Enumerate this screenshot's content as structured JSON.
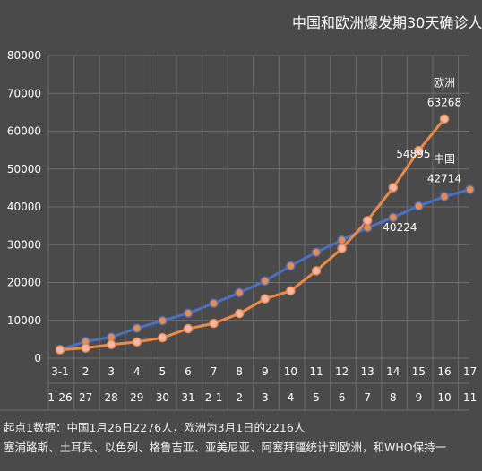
{
  "chart_data": {
    "type": "line",
    "title": "中国和欧洲爆发期30天确诊人",
    "categories_row1": [
      "3-1",
      "2",
      "3",
      "4",
      "5",
      "6",
      "7",
      "8",
      "9",
      "10",
      "11",
      "12",
      "13",
      "14",
      "15",
      "16",
      "17"
    ],
    "categories_row2": [
      "1-26",
      "27",
      "28",
      "29",
      "30",
      "31",
      "2-1",
      "2",
      "3",
      "4",
      "5",
      "6",
      "7",
      "8",
      "9",
      "10",
      "11"
    ],
    "ylim": [
      0,
      80000
    ],
    "yticks": [
      "0",
      "10000",
      "20000",
      "30000",
      "40000",
      "50000",
      "60000",
      "70000",
      "80000"
    ],
    "grid": true,
    "series": [
      {
        "name": "中国",
        "color": "#4a72c4",
        "marker_color": "#ed8a45",
        "values": [
          2276,
          4400,
          5550,
          7900,
          9900,
          11900,
          14500,
          17300,
          20400,
          24400,
          28000,
          31200,
          34500,
          37200,
          40224,
          42714,
          44600
        ]
      },
      {
        "name": "欧洲",
        "color": "#ed8a45",
        "marker_color": "#f2b7b0",
        "values": [
          2216,
          2700,
          3600,
          4300,
          5400,
          7800,
          9200,
          11800,
          15700,
          17800,
          23100,
          29000,
          36400,
          45100,
          54895,
          63268
        ]
      }
    ],
    "annotations": [
      {
        "text": "欧洲",
        "series": "欧洲"
      },
      {
        "text": "63268",
        "series": "欧洲"
      },
      {
        "text": "54895",
        "series": "欧洲"
      },
      {
        "text": "中国",
        "series": "中国"
      },
      {
        "text": "42714",
        "series": "中国"
      },
      {
        "text": "40224",
        "series": "中国"
      }
    ]
  },
  "footnotes": {
    "line1": "起点1数据：中国1月26日2276人，欧洲为3月1日的2216人",
    "line2": "塞浦路斯、土耳其、以色列、格鲁吉亚、亚美尼亚、阿塞拜疆统计到欧洲，和WHO保持一"
  }
}
